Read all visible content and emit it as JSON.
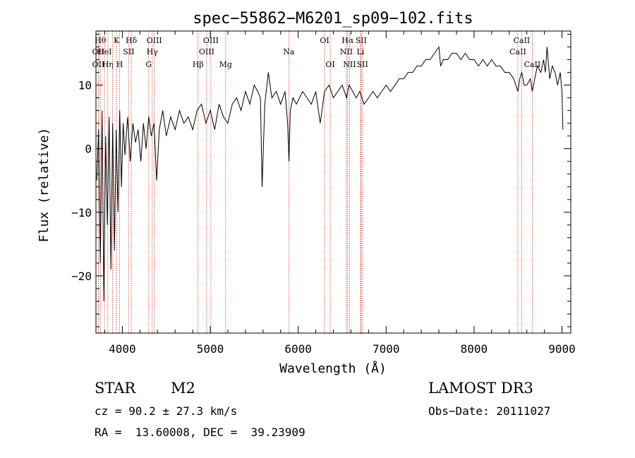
{
  "chart_data": {
    "type": "line",
    "title": "spec−55862−M6201_sp09−102.fits",
    "xlabel": "Wavelength (Å)",
    "ylabel": "Flux (relative)",
    "xlim": [
      3700,
      9100
    ],
    "ylim": [
      -29,
      18.5
    ],
    "xticks": [
      4000,
      5000,
      6000,
      7000,
      8000,
      9000
    ],
    "yticks": [
      -20,
      -10,
      0,
      10
    ],
    "xtick_labels": [
      "4000",
      "5000",
      "6000",
      "7000",
      "8000",
      "9000"
    ],
    "ytick_labels": [
      "−20",
      "−10",
      "0",
      "10"
    ],
    "series": [
      {
        "name": "spectrum",
        "x": [
          3710,
          3730,
          3750,
          3770,
          3790,
          3810,
          3830,
          3850,
          3870,
          3890,
          3910,
          3930,
          3950,
          3970,
          3990,
          4010,
          4030,
          4060,
          4090,
          4120,
          4150,
          4180,
          4210,
          4240,
          4270,
          4300,
          4330,
          4360,
          4390,
          4420,
          4460,
          4500,
          4550,
          4600,
          4650,
          4700,
          4750,
          4800,
          4850,
          4900,
          4950,
          5000,
          5050,
          5100,
          5150,
          5200,
          5250,
          5300,
          5350,
          5400,
          5450,
          5500,
          5540,
          5570,
          5590,
          5620,
          5660,
          5700,
          5750,
          5800,
          5850,
          5880,
          5895,
          5910,
          5940,
          5980,
          6050,
          6100,
          6150,
          6200,
          6250,
          6300,
          6350,
          6400,
          6450,
          6500,
          6550,
          6563,
          6580,
          6620,
          6660,
          6700,
          6750,
          6800,
          6850,
          6900,
          6950,
          7000,
          7050,
          7100,
          7150,
          7200,
          7250,
          7300,
          7350,
          7400,
          7450,
          7500,
          7550,
          7600,
          7620,
          7650,
          7700,
          7750,
          7800,
          7850,
          7900,
          7950,
          8000,
          8050,
          8100,
          8150,
          8200,
          8250,
          8300,
          8350,
          8400,
          8450,
          8498,
          8520,
          8542,
          8570,
          8600,
          8640,
          8662,
          8690,
          8720,
          8760,
          8790,
          8810,
          8830,
          8860,
          8890,
          8920,
          8950,
          8980,
          9000,
          9010
        ],
        "values": [
          -5,
          3,
          -18,
          6,
          -24,
          2,
          -12,
          5,
          -19,
          4,
          -16,
          3,
          -10,
          6,
          -6,
          4,
          -1,
          5,
          -2,
          4,
          1,
          3,
          -2,
          4,
          0,
          5,
          2,
          4,
          -5,
          3,
          6,
          2,
          5,
          3,
          6,
          4,
          5,
          3,
          6,
          7,
          4,
          6,
          3,
          7,
          5,
          4,
          7,
          8,
          6,
          9,
          7,
          10,
          9,
          8,
          -6,
          7,
          12,
          8,
          9,
          7,
          9,
          4,
          -2,
          6,
          8,
          7,
          9,
          8,
          7,
          9,
          4,
          9,
          10,
          8,
          9,
          10,
          8,
          9,
          10,
          9,
          8,
          9,
          7,
          8,
          9,
          8,
          9,
          10,
          9,
          10,
          11,
          11,
          12,
          12,
          13,
          13,
          14,
          14,
          15,
          16,
          13,
          14,
          14,
          15,
          15,
          14,
          15,
          14,
          14,
          13,
          14,
          13,
          14,
          13,
          13,
          12,
          12,
          11,
          9,
          11,
          12,
          10,
          10,
          11,
          9,
          11,
          13,
          12,
          14,
          12,
          16,
          11,
          13,
          12,
          10,
          12,
          9,
          3
        ]
      }
    ],
    "lines": [
      {
        "x": 3727,
        "label": "OII",
        "row": 2
      },
      {
        "x": 3727,
        "label": "OII",
        "row": 3
      },
      {
        "x": 3750,
        "label": "Hθ",
        "row": 1
      },
      {
        "x": 3798,
        "label": "HeI",
        "row": 2
      },
      {
        "x": 3835,
        "label": "Hη",
        "row": 3
      },
      {
        "x": 3889,
        "label": "",
        "row": 0
      },
      {
        "x": 3934,
        "label": "K",
        "row": 1
      },
      {
        "x": 3969,
        "label": "H",
        "row": 3
      },
      {
        "x": 4072,
        "label": "SII",
        "row": 2
      },
      {
        "x": 4102,
        "label": "Hδ",
        "row": 1
      },
      {
        "x": 4300,
        "label": "G",
        "row": 3
      },
      {
        "x": 4340,
        "label": "Hγ",
        "row": 2
      },
      {
        "x": 4363,
        "label": "OIII",
        "row": 1
      },
      {
        "x": 4861,
        "label": "Hβ",
        "row": 3
      },
      {
        "x": 4959,
        "label": "OIII",
        "row": 2
      },
      {
        "x": 5007,
        "label": "OIII",
        "row": 1
      },
      {
        "x": 5175,
        "label": "Mg",
        "row": 3
      },
      {
        "x": 5893,
        "label": "Na",
        "row": 2
      },
      {
        "x": 6300,
        "label": "OI",
        "row": 1
      },
      {
        "x": 6364,
        "label": "OI",
        "row": 3
      },
      {
        "x": 6548,
        "label": "NII",
        "row": 2
      },
      {
        "x": 6563,
        "label": "Hα",
        "row": 1
      },
      {
        "x": 6584,
        "label": "NII",
        "row": 3
      },
      {
        "x": 6708,
        "label": "Li",
        "row": 2
      },
      {
        "x": 6716,
        "label": "SII",
        "row": 1
      },
      {
        "x": 6731,
        "label": "SII",
        "row": 3
      },
      {
        "x": 8498,
        "label": "CaII",
        "row": 2
      },
      {
        "x": 8542,
        "label": "CaII",
        "row": 1
      },
      {
        "x": 8662,
        "label": "CaII",
        "row": 3
      }
    ]
  },
  "info": {
    "class_label": "STAR",
    "subclass": "M2",
    "cz": "cz = 90.2 ± 27.3 km/s",
    "radec": "RA =  13.60008, DEC =  39.23909",
    "survey": "LAMOST DR3",
    "obs_date": "Obs−Date: 20111027"
  }
}
